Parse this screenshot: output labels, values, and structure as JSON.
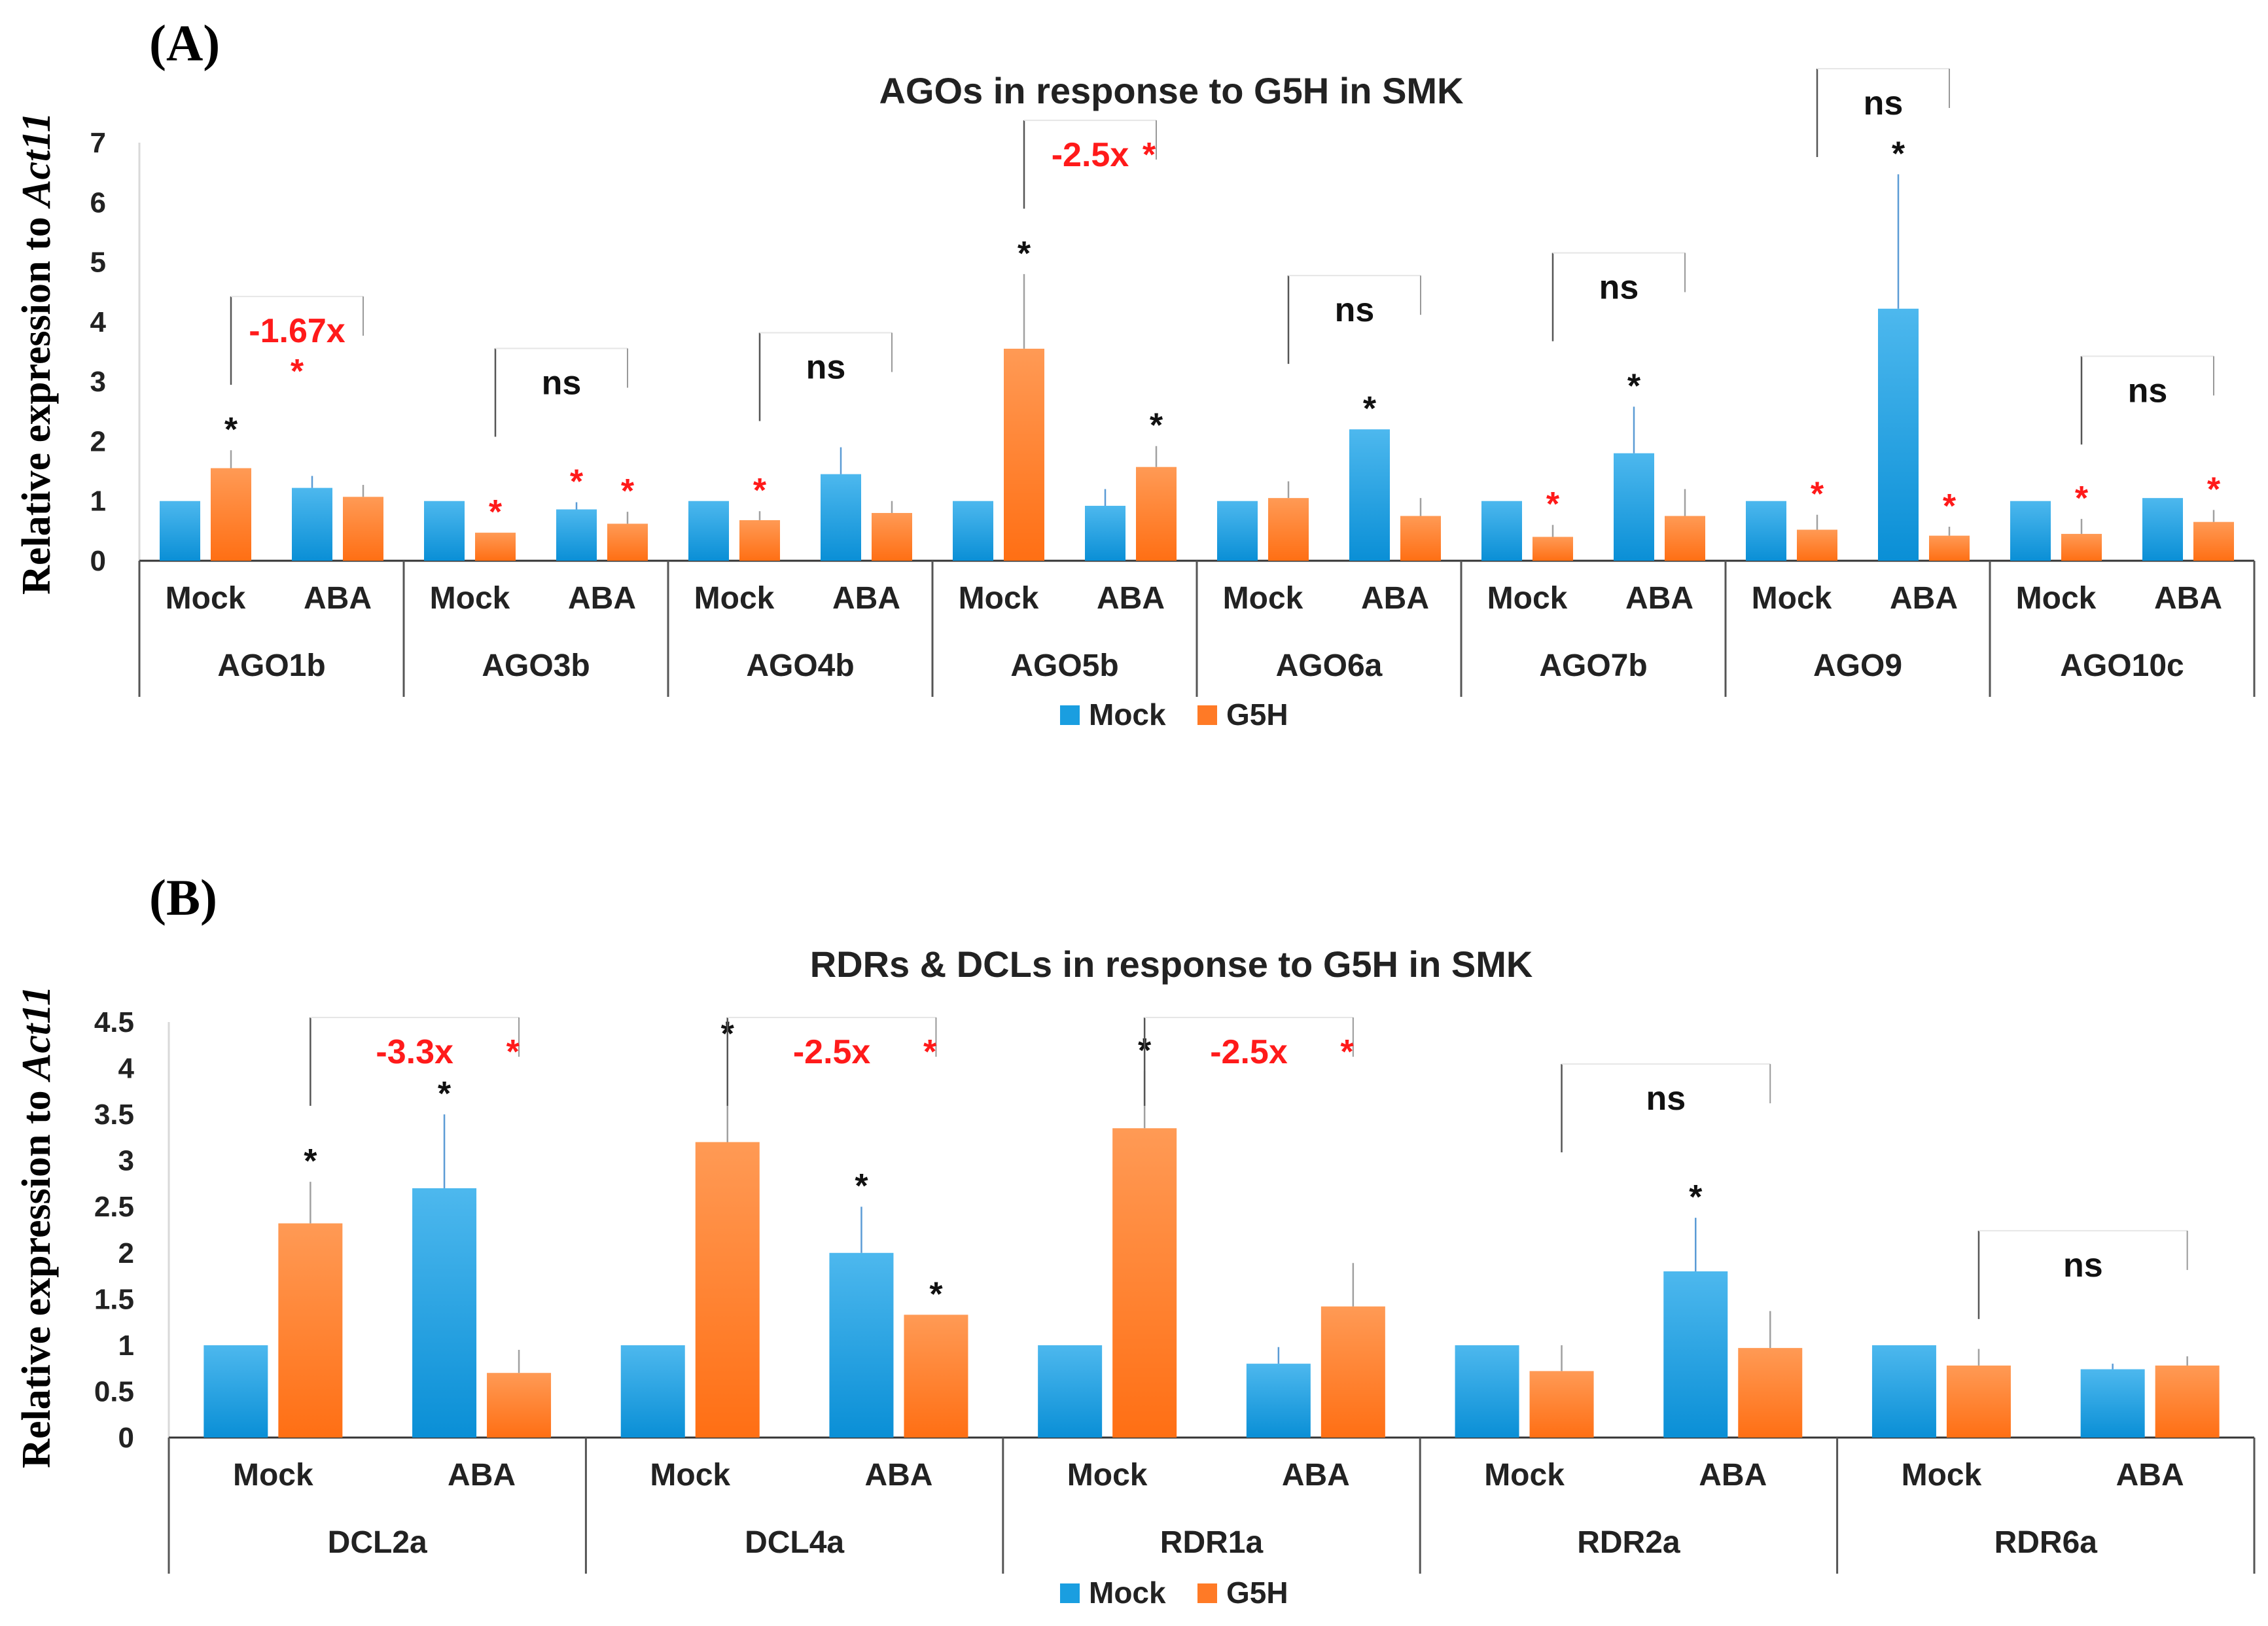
{
  "chart_data": [
    {
      "panel_label": "(A)",
      "type": "bar",
      "title": "AGOs in response to G5H in SMK",
      "ylabel_prefix": "Relative expression to ",
      "ylabel_gene": "Act11",
      "ylim": [
        0,
        7
      ],
      "yticks": [
        "0",
        "1",
        "2",
        "3",
        "4",
        "5",
        "6",
        "7"
      ],
      "conditions": [
        "Mock",
        "ABA"
      ],
      "legend": [
        {
          "name": "Mock",
          "color": "#1a9ee0"
        },
        {
          "name": "G5H",
          "color": "#ff7a26"
        }
      ],
      "genes": [
        {
          "name": "AGO1b",
          "values": [
            [
              1.0,
              1.55
            ],
            [
              1.22,
              1.07
            ]
          ],
          "errors": [
            [
              0,
              0.3
            ],
            [
              0.2,
              0.2
            ]
          ],
          "stars": [
            [
              null,
              "black"
            ],
            [
              null,
              null
            ]
          ],
          "comparison": {
            "lines": [
              "-1.67x",
              "*"
            ],
            "color": "red"
          }
        },
        {
          "name": "AGO3b",
          "values": [
            [
              1.0,
              0.47
            ],
            [
              0.86,
              0.62
            ]
          ],
          "errors": [
            [
              0,
              0
            ],
            [
              0.12,
              0.2
            ]
          ],
          "stars": [
            [
              null,
              "red"
            ],
            [
              "red",
              "red"
            ]
          ],
          "comparison": {
            "lines": [
              "ns"
            ],
            "color": "black"
          }
        },
        {
          "name": "AGO4b",
          "values": [
            [
              1.0,
              0.68
            ],
            [
              1.45,
              0.8
            ]
          ],
          "errors": [
            [
              0,
              0.15
            ],
            [
              0.45,
              0.2
            ]
          ],
          "stars": [
            [
              null,
              "red"
            ],
            [
              null,
              null
            ]
          ],
          "comparison": {
            "lines": [
              "ns"
            ],
            "color": "black"
          }
        },
        {
          "name": "AGO5b",
          "values": [
            [
              1.0,
              3.55
            ],
            [
              0.92,
              1.57
            ]
          ],
          "errors": [
            [
              0,
              1.25
            ],
            [
              0.28,
              0.35
            ]
          ],
          "stars": [
            [
              null,
              "black"
            ],
            [
              null,
              "black"
            ]
          ],
          "comparison": {
            "lines": [
              "-2.5x",
              "*"
            ],
            "color": "red"
          }
        },
        {
          "name": "AGO6a",
          "values": [
            [
              1.0,
              1.05
            ],
            [
              2.2,
              0.75
            ]
          ],
          "errors": [
            [
              0,
              0.28
            ],
            [
              0,
              0.3
            ]
          ],
          "stars": [
            [
              null,
              null
            ],
            [
              "black",
              null
            ]
          ],
          "comparison": {
            "lines": [
              "ns"
            ],
            "color": "black"
          }
        },
        {
          "name": "AGO7b",
          "values": [
            [
              1.0,
              0.4
            ],
            [
              1.8,
              0.75
            ]
          ],
          "errors": [
            [
              0,
              0.2
            ],
            [
              0.78,
              0.45
            ]
          ],
          "stars": [
            [
              null,
              "red"
            ],
            [
              "black",
              null
            ]
          ],
          "comparison": {
            "lines": [
              "ns"
            ],
            "color": "black"
          }
        },
        {
          "name": "AGO9",
          "values": [
            [
              1.0,
              0.52
            ],
            [
              4.22,
              0.42
            ]
          ],
          "errors": [
            [
              0,
              0.25
            ],
            [
              2.25,
              0.15
            ]
          ],
          "stars": [
            [
              null,
              "red"
            ],
            [
              "black",
              "red"
            ]
          ],
          "comparison": {
            "lines": [
              "ns"
            ],
            "color": "black"
          }
        },
        {
          "name": "AGO10c",
          "values": [
            [
              1.0,
              0.45
            ],
            [
              1.05,
              0.65
            ]
          ],
          "errors": [
            [
              0,
              0.25
            ],
            [
              0,
              0.2
            ]
          ],
          "stars": [
            [
              null,
              "red"
            ],
            [
              null,
              "red"
            ]
          ],
          "comparison": {
            "lines": [
              "ns"
            ],
            "color": "black"
          }
        }
      ]
    },
    {
      "panel_label": "(B)",
      "type": "bar",
      "title": "RDRs & DCLs in response to G5H in SMK",
      "ylabel_prefix": "Relative expression to ",
      "ylabel_gene": "Act11",
      "ylim": [
        0,
        4.5
      ],
      "yticks": [
        "0",
        "0.5",
        "1",
        "1.5",
        "2",
        "2.5",
        "3",
        "3.5",
        "4",
        "4.5"
      ],
      "conditions": [
        "Mock",
        "ABA"
      ],
      "legend": [
        {
          "name": "Mock",
          "color": "#1a9ee0"
        },
        {
          "name": "G5H",
          "color": "#ff7a26"
        }
      ],
      "genes": [
        {
          "name": "DCL2a",
          "values": [
            [
              1.0,
              2.32
            ],
            [
              2.7,
              0.7
            ]
          ],
          "errors": [
            [
              0,
              0.45
            ],
            [
              0.8,
              0.25
            ]
          ],
          "stars": [
            [
              null,
              "black"
            ],
            [
              "black",
              null
            ]
          ],
          "comparison": {
            "lines": [
              "-3.3x",
              "*"
            ],
            "color": "red"
          }
        },
        {
          "name": "DCL4a",
          "values": [
            [
              1.0,
              3.2
            ],
            [
              2.0,
              1.33
            ]
          ],
          "errors": [
            [
              0,
              0.95
            ],
            [
              0.5,
              0
            ]
          ],
          "stars": [
            [
              null,
              "black"
            ],
            [
              "black",
              "black"
            ]
          ],
          "comparison": {
            "lines": [
              "-2.5x",
              "*"
            ],
            "color": "red"
          }
        },
        {
          "name": "RDR1a",
          "values": [
            [
              1.0,
              3.35
            ],
            [
              0.8,
              1.42
            ]
          ],
          "errors": [
            [
              0,
              0.62
            ],
            [
              0.18,
              0.47
            ]
          ],
          "stars": [
            [
              null,
              "black"
            ],
            [
              null,
              null
            ]
          ],
          "comparison": {
            "lines": [
              "-2.5x",
              "*"
            ],
            "color": "red"
          }
        },
        {
          "name": "RDR2a",
          "values": [
            [
              1.0,
              0.72
            ],
            [
              1.8,
              0.97
            ]
          ],
          "errors": [
            [
              0,
              0.28
            ],
            [
              0.58,
              0.4
            ]
          ],
          "stars": [
            [
              null,
              null
            ],
            [
              "black",
              null
            ]
          ],
          "comparison": {
            "lines": [
              "ns"
            ],
            "color": "black"
          }
        },
        {
          "name": "RDR6a",
          "values": [
            [
              1.0,
              0.78
            ],
            [
              0.74,
              0.78
            ]
          ],
          "errors": [
            [
              0,
              0.18
            ],
            [
              0.06,
              0.1
            ]
          ],
          "stars": [
            [
              null,
              null
            ],
            [
              null,
              null
            ]
          ],
          "comparison": {
            "lines": [
              "ns"
            ],
            "color": "black"
          }
        }
      ]
    }
  ]
}
